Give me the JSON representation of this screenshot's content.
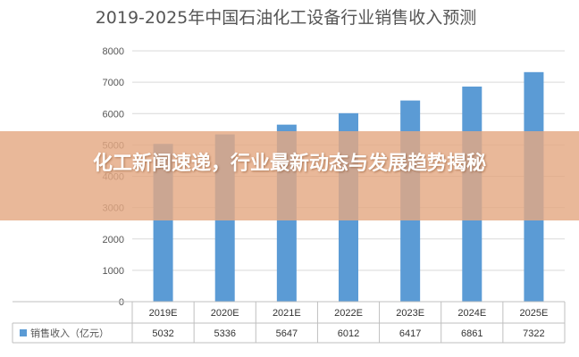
{
  "banner": {
    "headline": "化工新闻速递，行业最新动态与发展趋势揭秘"
  },
  "chart_data": {
    "type": "bar",
    "title": "2019-2025年中国石油化工设备行业销售收入预测",
    "categories": [
      "2019E",
      "2020E",
      "2021E",
      "2022E",
      "2023E",
      "2024E",
      "2025E"
    ],
    "series": [
      {
        "name": "销售收入（亿元）",
        "values": [
          5032,
          5336,
          5647,
          6012,
          6417,
          6861,
          7322
        ],
        "value_labels": [
          "5032",
          "5336",
          "5647",
          "6012",
          "6417",
          "6861",
          "7322"
        ],
        "color": "#5B9BD5"
      }
    ],
    "yticks": [
      "0",
      "1000",
      "2000",
      "3000",
      "4000",
      "5000",
      "6000",
      "7000",
      "8000"
    ],
    "ylim": [
      0,
      8000
    ],
    "grid": true,
    "legend": "bottom-left"
  }
}
